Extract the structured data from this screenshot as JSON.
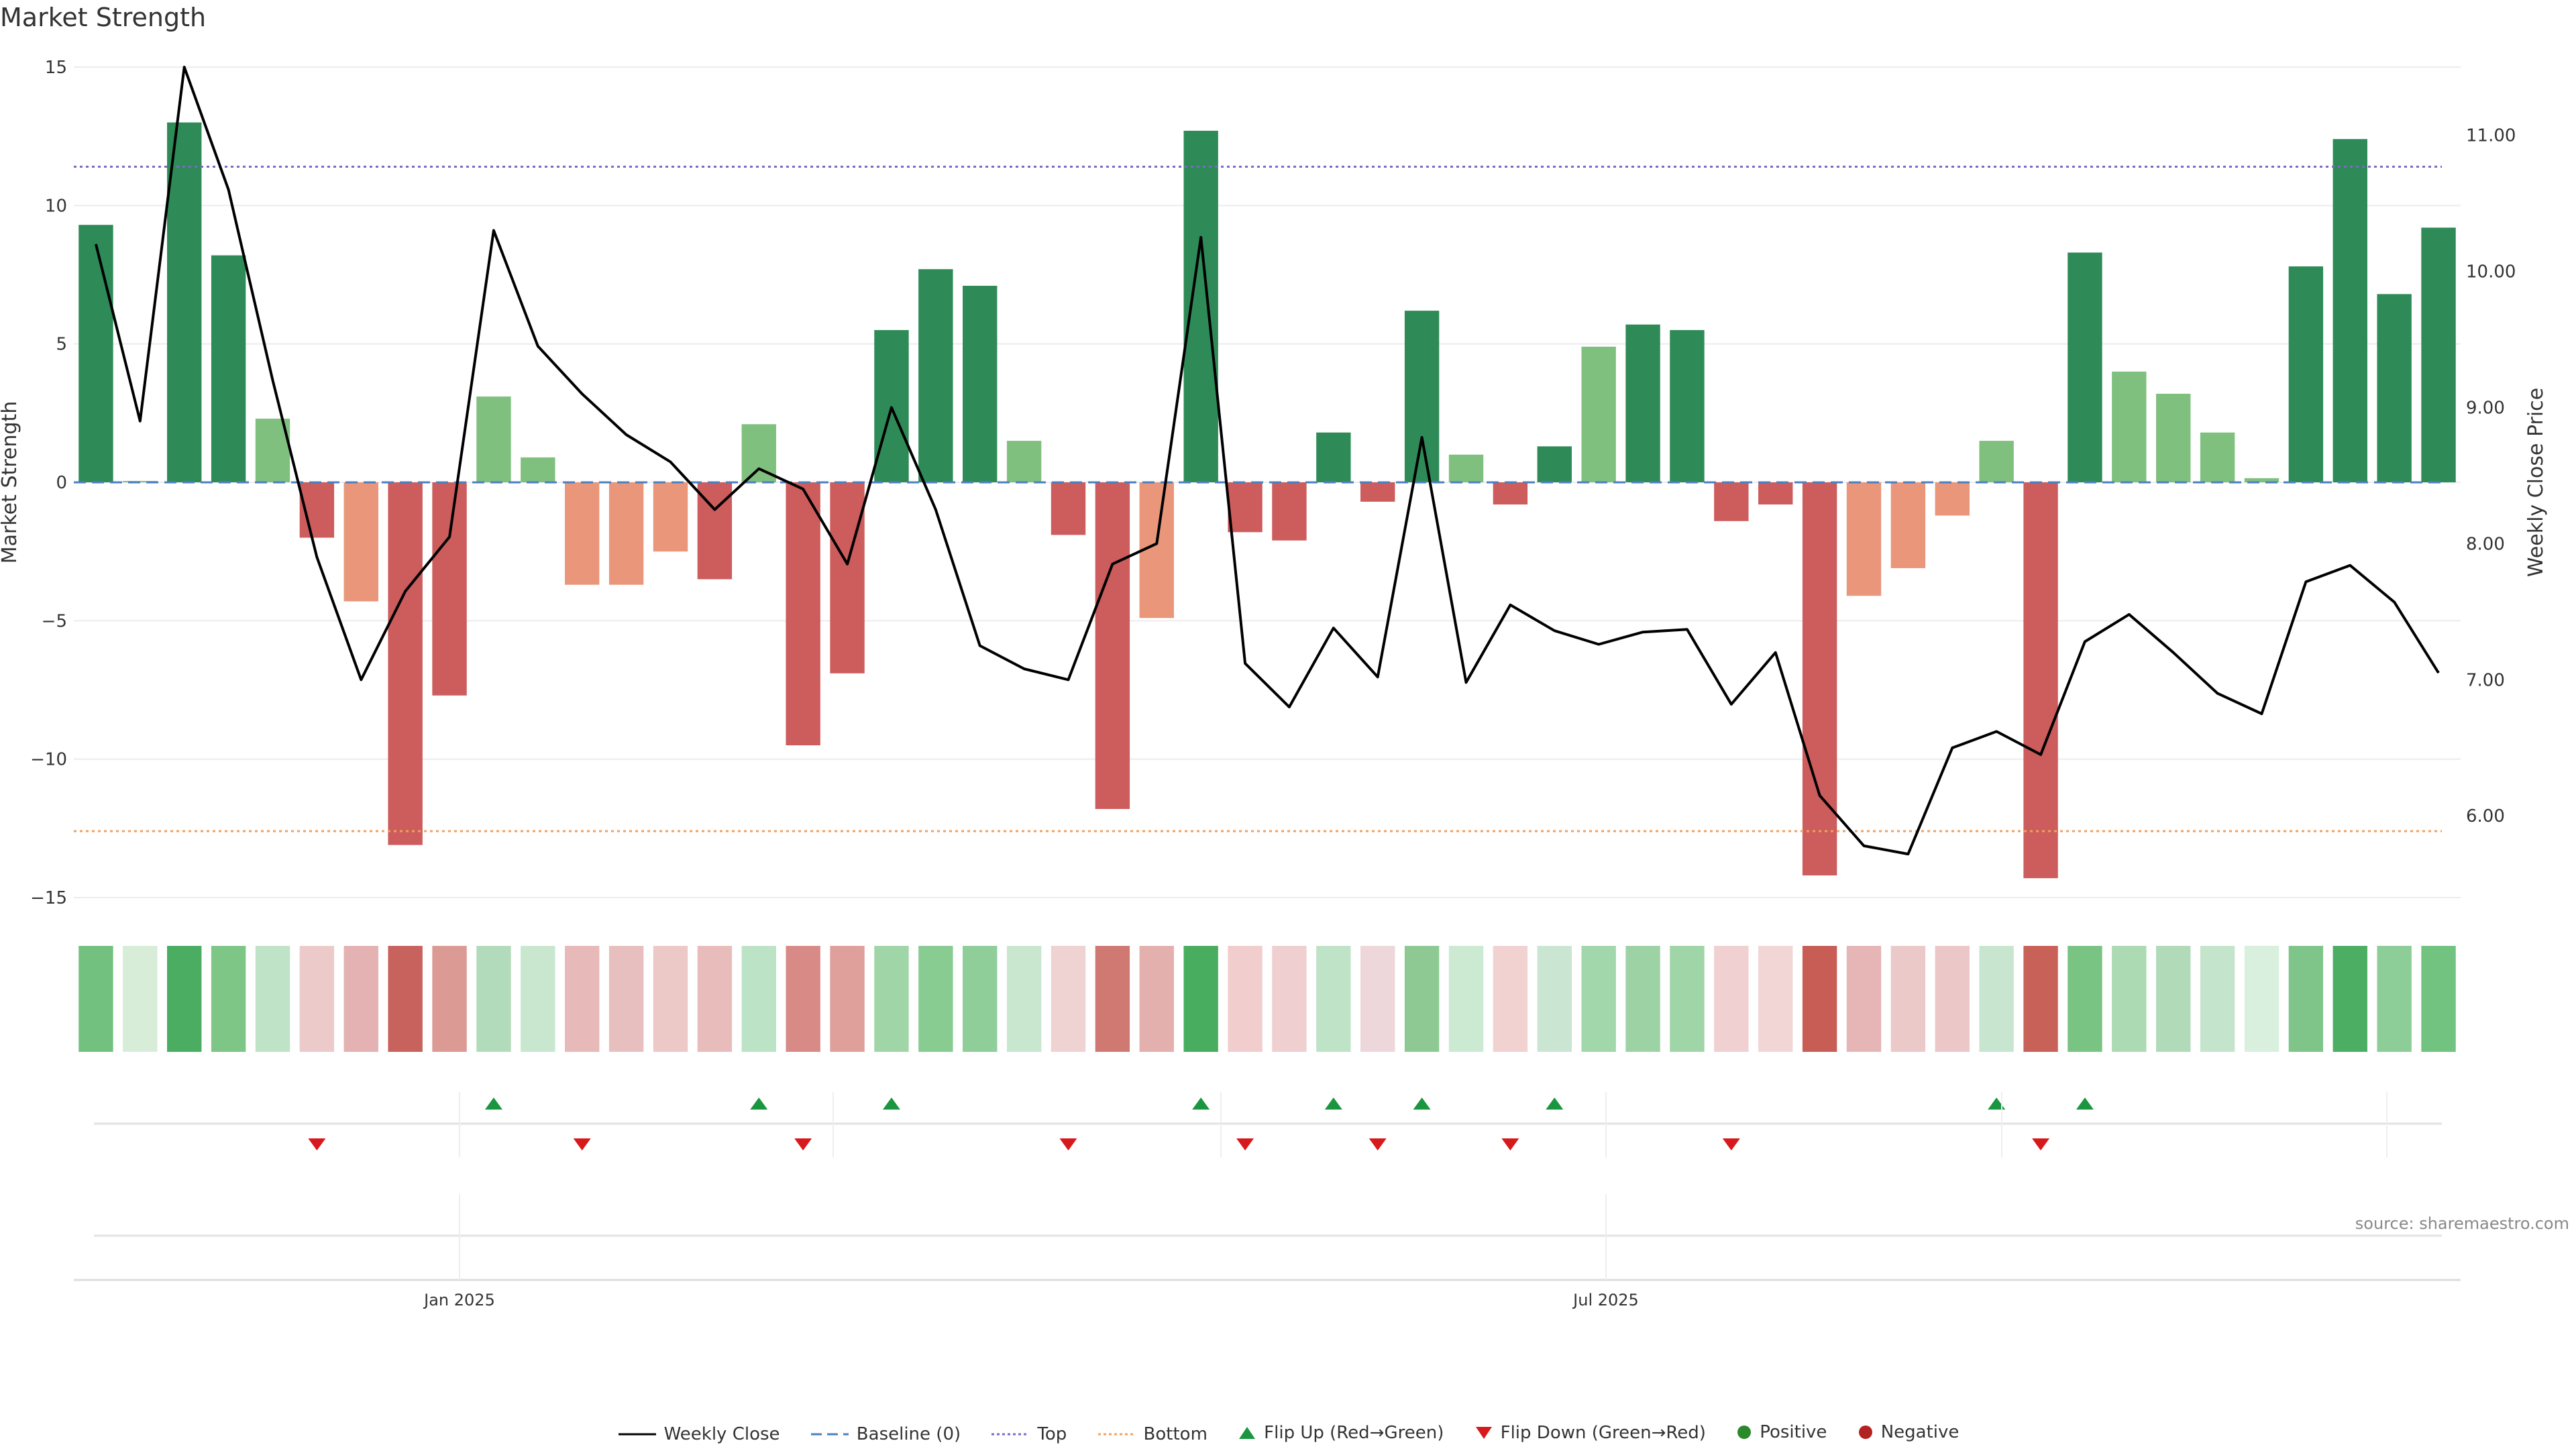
{
  "chart_data": {
    "type": "bar",
    "title": "Market Strength",
    "source": "source: sharemaestro.com",
    "ylabel": "Market Strength",
    "y2label": "Weekly Close Price",
    "ylim": [
      -15,
      15
    ],
    "y2lim": [
      5.4,
      11.5
    ],
    "yticks": [
      "15",
      "10",
      "5",
      "0",
      "−5",
      "−10",
      "−15"
    ],
    "y2ticks": [
      "11.00",
      "10.00",
      "9.00",
      "8.00",
      "7.00",
      "6.00"
    ],
    "xtick_labels": [
      "Jan 2025",
      "Jul 2025"
    ],
    "top_line": 11.4,
    "bottom_line": -12.6,
    "baseline": 0,
    "colors": {
      "strong_positive": "#2e8b57",
      "positive": "#80c07e",
      "negative": "#cd5c5c",
      "weak_negative": "#e9967a",
      "flip_up": "#1a9641",
      "flip_down": "#d7191c",
      "price_line": "#000000",
      "baseline": "#4a7fbf",
      "top": "#7b68c8",
      "bottom": "#f0a060"
    },
    "values": [
      9.3,
      0.05,
      13.0,
      8.2,
      2.3,
      -2.0,
      -4.3,
      -13.1,
      -7.7,
      3.1,
      0.9,
      -3.7,
      -3.7,
      -2.5,
      -3.5,
      2.1,
      -9.5,
      -6.9,
      5.5,
      7.7,
      7.1,
      1.5,
      -1.9,
      -11.8,
      -4.9,
      12.7,
      -1.8,
      -2.1,
      1.8,
      -0.7,
      6.2,
      1.0,
      -0.8,
      1.3,
      4.9,
      5.7,
      5.5,
      -1.4,
      -0.8,
      -14.2,
      -4.1,
      -3.1,
      -1.2,
      1.5,
      -14.3,
      8.3,
      4.0,
      3.2,
      1.8,
      0.15,
      7.8,
      12.4,
      6.8,
      9.2
    ],
    "prices": [
      10.2,
      8.9,
      11.5,
      10.6,
      9.2,
      7.9,
      7.0,
      7.65,
      8.05,
      10.3,
      9.45,
      9.1,
      8.8,
      8.6,
      8.25,
      8.55,
      8.4,
      7.85,
      9.0,
      8.25,
      7.25,
      7.08,
      7.0,
      7.85,
      8.0,
      10.25,
      7.12,
      6.8,
      7.38,
      7.02,
      8.78,
      6.98,
      7.55,
      7.36,
      7.26,
      7.35,
      7.37,
      6.82,
      7.2,
      6.15,
      5.78,
      5.72,
      6.5,
      6.62,
      6.45,
      7.28,
      7.48,
      7.2,
      6.9,
      6.75,
      7.72,
      7.84,
      7.57,
      7.05
    ],
    "heat_colors": [
      "#73c17f",
      "#d7edd8",
      "#4bad62",
      "#7dc686",
      "#bfe3c7",
      "#eccaca",
      "#e4b2b2",
      "#c8625d",
      "#dc9a95",
      "#b2dbbb",
      "#c8e7ce",
      "#e8b9b9",
      "#e8bfbf",
      "#ecc9c6",
      "#e8bcbb",
      "#bde3c6",
      "#d88b86",
      "#df9f9b",
      "#a0d5a8",
      "#88cc92",
      "#8fcd99",
      "#c9e6cf",
      "#efd2d2",
      "#d07972",
      "#e3b0ad",
      "#49ad60",
      "#f1cdcd",
      "#efcfcf",
      "#bfe3c7",
      "#edd7db",
      "#8ec994",
      "#cce9d2",
      "#f2d1d1",
      "#cae6d2",
      "#a2d6ab",
      "#9cd2a4",
      "#9fd5a7",
      "#f0d0d0",
      "#f2d6d6",
      "#c85d56",
      "#e6b5b5",
      "#ebc9c9",
      "#ecc7c7",
      "#c8e6cf",
      "#c86157",
      "#79c383",
      "#acdab3",
      "#b1dab8",
      "#c4e5cc",
      "#d8f0dd",
      "#7fc58a",
      "#4bae63",
      "#8ccd98",
      "#72c280"
    ],
    "flip_up_index": [
      9,
      15,
      18,
      25,
      28,
      30,
      33,
      43,
      45
    ],
    "flip_down_index": [
      5,
      11,
      16,
      22,
      26,
      29,
      32,
      37,
      44
    ],
    "legend": [
      {
        "label": "Weekly Close",
        "marker": "solid-line"
      },
      {
        "label": "Baseline (0)",
        "marker": "dashed-line"
      },
      {
        "label": "Top",
        "marker": "dotted-line-purple"
      },
      {
        "label": "Bottom",
        "marker": "dotted-line-orange"
      },
      {
        "label": "Flip Up (Red→Green)",
        "marker": "triangle-up"
      },
      {
        "label": "Flip Down (Green→Red)",
        "marker": "triangle-down"
      },
      {
        "label": "Positive",
        "marker": "circle-green"
      },
      {
        "label": "Negative",
        "marker": "circle-red"
      }
    ]
  }
}
